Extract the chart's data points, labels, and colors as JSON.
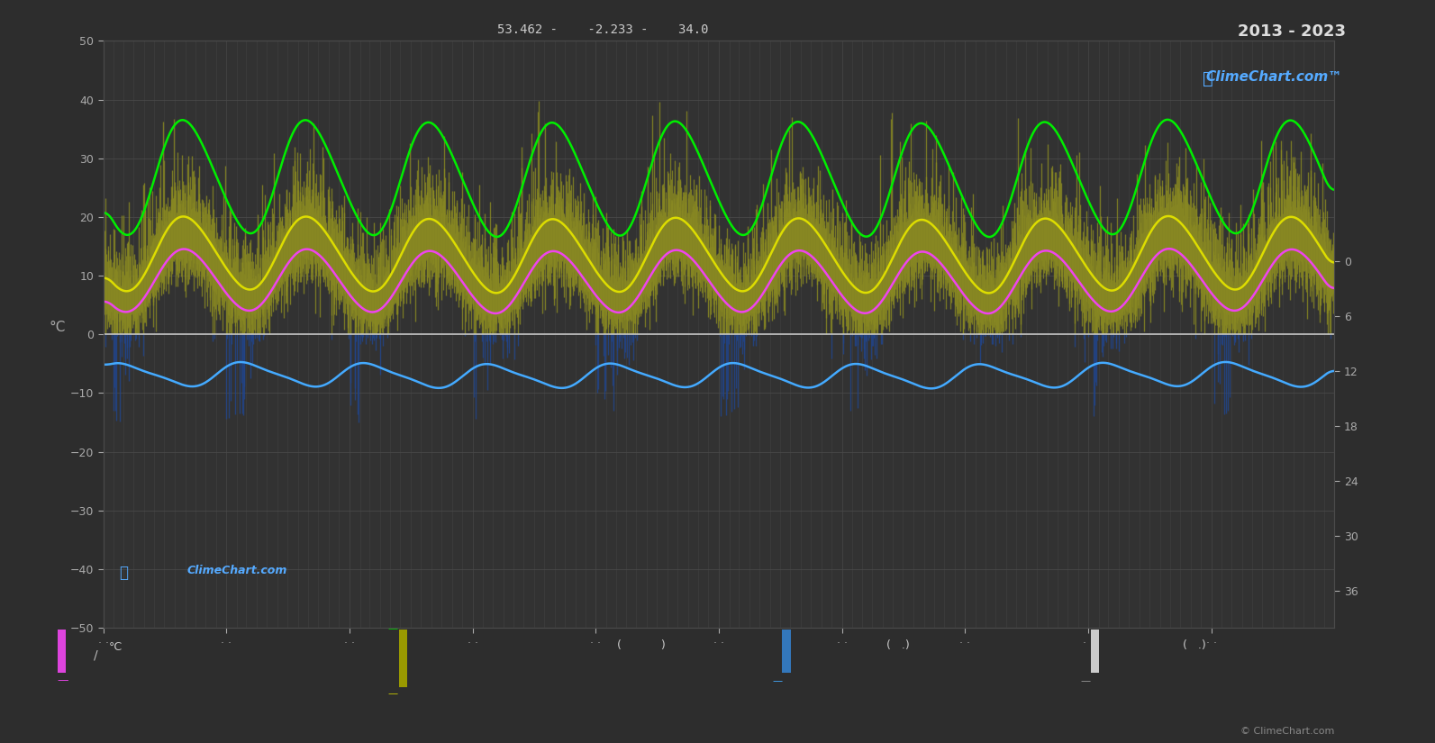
{
  "background_color": "#2d2d2d",
  "plot_bg_color": "#323232",
  "grid_color": "#4a4a4a",
  "title_coord": "53.462 -    -2.233 -    34.0",
  "title_year": "2013 - 2023",
  "ylabel_left": "°C",
  "ylim_left": [
    -50,
    50
  ],
  "yticks_left": [
    -50,
    -40,
    -30,
    -20,
    -10,
    0,
    10,
    20,
    30,
    40,
    50
  ],
  "yticks_right": [
    0,
    6,
    12,
    18,
    24,
    30,
    36
  ],
  "green_color": "#00ee00",
  "yellow_color": "#dddd00",
  "magenta_color": "#ee44ee",
  "cyan_color": "#44aaff",
  "bar_pos_color": "#888822",
  "bar_neg_color": "#224488",
  "watermark_color": "#55aaff",
  "copyright": "© ClimeChart.com",
  "n_years": 10,
  "start_year": 2013,
  "logo_color": "#55aaff",
  "axis_text_color": "#aaaaaa",
  "zero_line_color": "#cccccc"
}
